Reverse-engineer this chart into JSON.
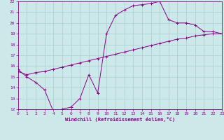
{
  "xlabel": "Windchill (Refroidissement éolien,°C)",
  "background_color": "#cce8e8",
  "grid_color": "#aacece",
  "line_color": "#880088",
  "xlim": [
    0,
    23
  ],
  "ylim": [
    12,
    22
  ],
  "xticks": [
    0,
    1,
    2,
    3,
    4,
    5,
    6,
    7,
    8,
    9,
    10,
    11,
    12,
    13,
    14,
    15,
    16,
    17,
    18,
    19,
    20,
    21,
    22,
    23
  ],
  "yticks": [
    12,
    13,
    14,
    15,
    16,
    17,
    18,
    19,
    20,
    21,
    22
  ],
  "series1_x": [
    0,
    1,
    2,
    3,
    4,
    5,
    6,
    7,
    8,
    9,
    10,
    11,
    12,
    13,
    14,
    15,
    16,
    17,
    18,
    19,
    20,
    21,
    22,
    23
  ],
  "series1_y": [
    15.7,
    15.0,
    14.5,
    13.8,
    11.8,
    12.0,
    12.2,
    13.0,
    15.2,
    13.5,
    19.0,
    20.7,
    21.2,
    21.6,
    21.7,
    21.8,
    22.0,
    20.3,
    20.0,
    20.0,
    19.8,
    19.2,
    19.2,
    19.0
  ],
  "series2_x": [
    0,
    1,
    2,
    3,
    4,
    5,
    6,
    7,
    8,
    9,
    10,
    11,
    12,
    13,
    14,
    15,
    16,
    17,
    18,
    19,
    20,
    21,
    22,
    23
  ],
  "series2_y": [
    15.5,
    15.2,
    15.4,
    15.5,
    15.7,
    15.9,
    16.1,
    16.3,
    16.5,
    16.7,
    16.9,
    17.1,
    17.3,
    17.5,
    17.7,
    17.9,
    18.1,
    18.3,
    18.5,
    18.6,
    18.8,
    18.9,
    19.0,
    19.0
  ]
}
